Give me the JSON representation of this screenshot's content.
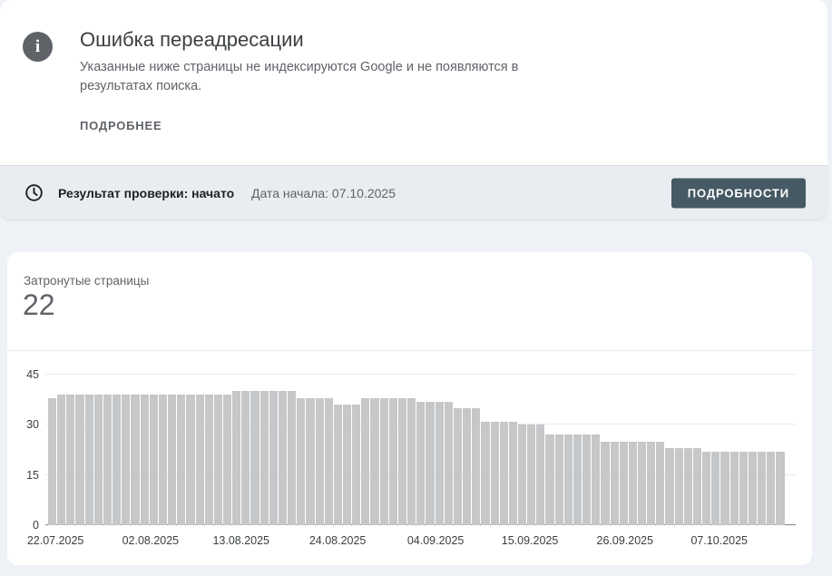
{
  "alert": {
    "title": "Ошибка переадресации",
    "description": "Указанные ниже страницы не индексируются Google и не появляются в результатах поиска.",
    "learn_more_label": "ПОДРОБНЕЕ"
  },
  "validation": {
    "status_label": "Результат проверки: начато",
    "start_date_label": "Дата начала: 07.10.2025",
    "details_button_label": "ПОДРОБНОСТИ"
  },
  "chart_card": {
    "metric_label": "Затронутые страницы",
    "metric_value": "22"
  },
  "chart_data": {
    "type": "bar",
    "title": "Затронутые страницы",
    "xlabel": "",
    "ylabel": "",
    "ylim": [
      0,
      45
    ],
    "yticks": [
      0,
      15,
      30,
      45
    ],
    "grid": true,
    "legend": false,
    "x_tick_labels": [
      "22.07.2025",
      "02.08.2025",
      "13.08.2025",
      "24.08.2025",
      "04.09.2025",
      "15.09.2025",
      "26.09.2025",
      "07.10.2025"
    ],
    "bar_color": "#c5c7c9",
    "values": [
      38,
      39,
      39,
      39,
      39,
      39,
      39,
      39,
      39,
      39,
      39,
      39,
      39,
      39,
      39,
      39,
      39,
      39,
      39,
      39,
      40,
      40,
      40,
      40,
      40,
      40,
      40,
      38,
      38,
      38,
      38,
      36,
      36,
      36,
      38,
      38,
      38,
      38,
      38,
      38,
      37,
      37,
      37,
      37,
      35,
      35,
      35,
      31,
      31,
      31,
      31,
      30,
      30,
      30,
      27,
      27,
      27,
      27,
      27,
      27,
      25,
      25,
      25,
      25,
      25,
      25,
      25,
      23,
      23,
      23,
      23,
      22,
      22,
      22,
      22,
      22,
      22,
      22,
      22,
      22
    ]
  },
  "icons": {
    "info": "info-icon",
    "clock": "clock-icon"
  },
  "colors": {
    "page_background": "#eef1f5",
    "card_background": "#ffffff",
    "validation_bar_background": "#e9edf1",
    "details_button": "#455a64",
    "bar_fill": "#c5c7c9",
    "title_text": "#3c4043",
    "secondary_text": "#5f6368",
    "status_text": "#202124"
  }
}
